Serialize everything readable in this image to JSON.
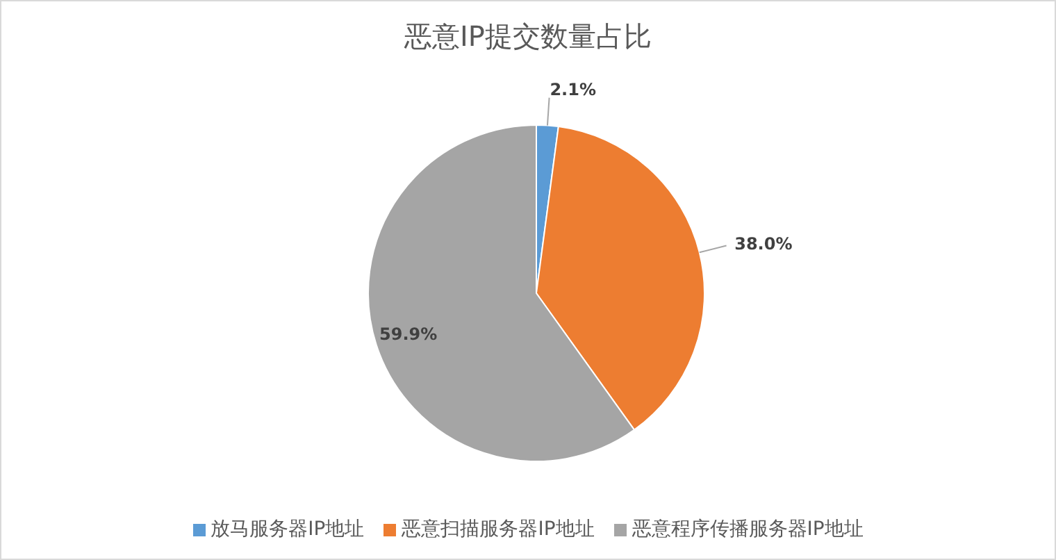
{
  "chart_data": {
    "type": "pie",
    "title": "恶意IP提交数量占比",
    "categories": [
      "放马服务器IP地址",
      "恶意扫描服务器IP地址",
      "恶意程序传播服务器IP地址"
    ],
    "values": [
      2.1,
      38.0,
      59.9
    ],
    "colors": [
      "#5b9bd5",
      "#ed7d31",
      "#a5a5a5"
    ],
    "value_labels": [
      "2.1%",
      "38.0%",
      "59.9%"
    ],
    "legend": "bottom"
  }
}
